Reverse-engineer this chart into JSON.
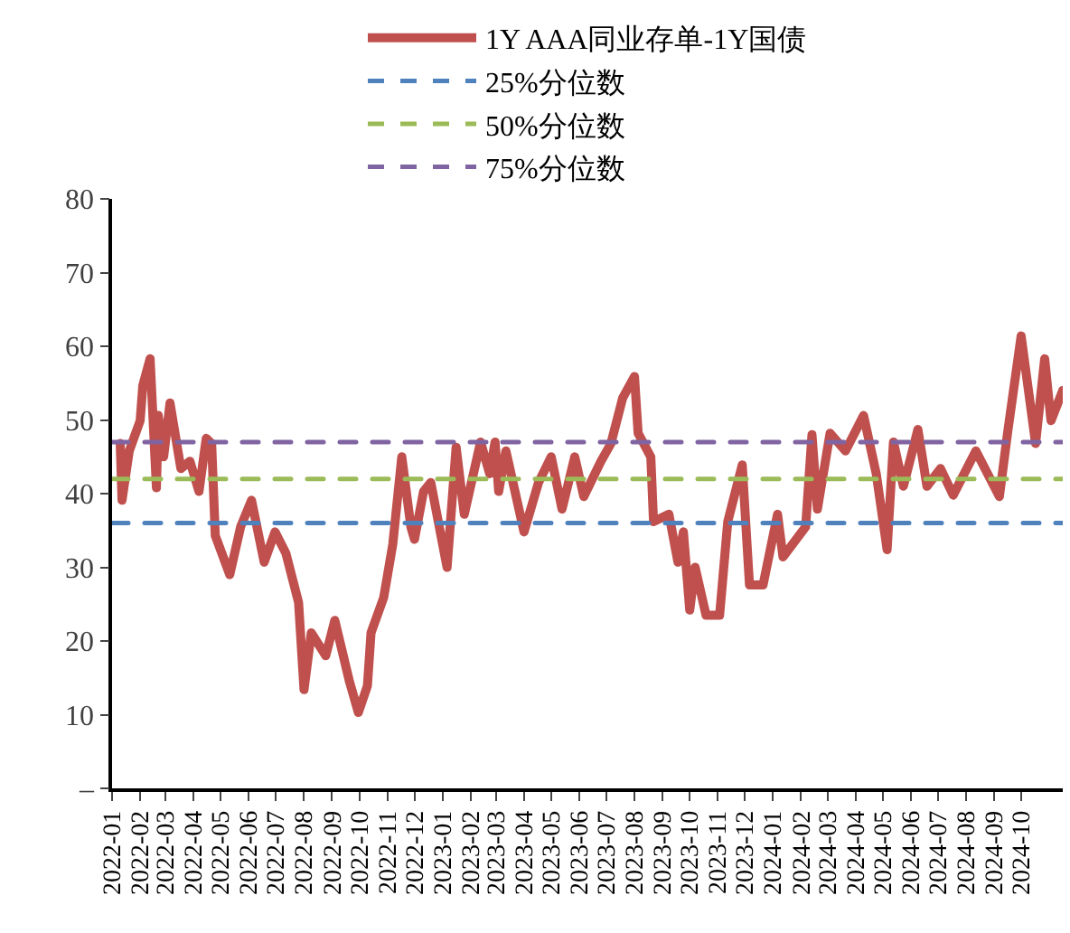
{
  "chart_data": {
    "type": "line",
    "legend": "top",
    "grid": false,
    "x": [
      "2022-01-10",
      "2022-01-12",
      "2022-01-20",
      "2022-02-01",
      "2022-02-04",
      "2022-02-12",
      "2022-02-19",
      "2022-02-21",
      "2022-02-27",
      "2022-03-06",
      "2022-03-18",
      "2022-03-28",
      "2022-04-07",
      "2022-04-15",
      "2022-04-21",
      "2022-04-25",
      "2022-05-11",
      "2022-05-23",
      "2022-06-04",
      "2022-06-18",
      "2022-06-30",
      "2022-07-12",
      "2022-07-26",
      "2022-08-01",
      "2022-08-09",
      "2022-08-25",
      "2022-09-04",
      "2022-09-20",
      "2022-09-30",
      "2022-10-10",
      "2022-10-14",
      "2022-10-28",
      "2022-11-07",
      "2022-11-17",
      "2022-11-27",
      "2022-12-01",
      "2022-12-11",
      "2022-12-19",
      "2023-01-06",
      "2023-01-16",
      "2023-01-25",
      "2023-02-12",
      "2023-02-22",
      "2023-02-28",
      "2023-03-04",
      "2023-03-12",
      "2023-04-01",
      "2023-04-17",
      "2023-05-01",
      "2023-05-13",
      "2023-05-27",
      "2023-06-06",
      "2023-06-25",
      "2023-07-06",
      "2023-07-19",
      "2023-08-01",
      "2023-08-05",
      "2023-08-19",
      "2023-08-22",
      "2023-09-08",
      "2023-09-18",
      "2023-09-24",
      "2023-10-01",
      "2023-10-07",
      "2023-10-19",
      "2023-11-03",
      "2023-11-12",
      "2023-11-28",
      "2023-12-06",
      "2023-12-21",
      "2024-01-06",
      "2024-01-12",
      "2024-02-06",
      "2024-02-13",
      "2024-02-19",
      "2024-03-04",
      "2024-03-21",
      "2024-04-10",
      "2024-04-24",
      "2024-05-06",
      "2024-05-13",
      "2024-05-24",
      "2024-06-09",
      "2024-06-19",
      "2024-07-04",
      "2024-07-18",
      "2024-08-12",
      "2024-09-07",
      "2024-09-16",
      "2024-10-01",
      "2024-10-17",
      "2024-10-27",
      "2024-11-03",
      "2024-11-16"
    ],
    "series": [
      {
        "name": "1Y AAA同业存单-1Y国债",
        "color": "#c0504d",
        "values": [
          46.8,
          39.1,
          45.8,
          49.9,
          54.7,
          58.3,
          40.8,
          50.6,
          45.0,
          52.3,
          43.4,
          44.4,
          40.3,
          47.5,
          46.8,
          34.3,
          29.0,
          35.5,
          39.1,
          30.7,
          34.8,
          31.9,
          25.2,
          13.4,
          21.1,
          18.0,
          22.8,
          14.6,
          10.3,
          13.9,
          21.1,
          25.9,
          33.1,
          45.0,
          35.5,
          33.8,
          40.3,
          41.5,
          30.0,
          46.3,
          37.2,
          47.0,
          42.7,
          47.0,
          40.3,
          45.8,
          34.8,
          41.5,
          45.0,
          37.9,
          45.0,
          39.6,
          44.4,
          46.8,
          53.0,
          55.9,
          48.2,
          45.0,
          36.2,
          37.2,
          30.7,
          34.8,
          24.2,
          30.0,
          23.5,
          23.5,
          36.2,
          43.9,
          27.6,
          27.6,
          37.2,
          31.4,
          35.5,
          48.0,
          37.9,
          48.2,
          45.8,
          50.6,
          42.7,
          32.4,
          47.0,
          41.0,
          48.7,
          41.0,
          43.4,
          39.8,
          45.8,
          39.6,
          48.2,
          61.4,
          46.8,
          58.3,
          49.9,
          54.0
        ]
      }
    ],
    "ref_lines": [
      {
        "axis": "y",
        "value": 36,
        "label": "25%分位数",
        "color": "#4f81bd",
        "line_style": "dashed"
      },
      {
        "axis": "y",
        "value": 42,
        "label": "50%分位数",
        "color": "#9bbb59",
        "line_style": "dashed"
      },
      {
        "axis": "y",
        "value": 47,
        "label": "75%分位数",
        "color": "#8064a2",
        "line_style": "dashed"
      }
    ],
    "xlim": [
      "2022-01-01",
      "2024-11-16"
    ],
    "xticks": [
      {
        "value": "2022-01-01",
        "label": "2022-01"
      },
      {
        "value": "2022-02-01",
        "label": "2022-02"
      },
      {
        "value": "2022-03-01",
        "label": "2022-03"
      },
      {
        "value": "2022-04-01",
        "label": "2022-04"
      },
      {
        "value": "2022-05-01",
        "label": "2022-05"
      },
      {
        "value": "2022-06-01",
        "label": "2022-06"
      },
      {
        "value": "2022-07-01",
        "label": "2022-07"
      },
      {
        "value": "2022-08-01",
        "label": "2022-08"
      },
      {
        "value": "2022-09-01",
        "label": "2022-09"
      },
      {
        "value": "2022-10-01",
        "label": "2022-10"
      },
      {
        "value": "2022-11-01",
        "label": "2022-11"
      },
      {
        "value": "2022-12-01",
        "label": "2022-12"
      },
      {
        "value": "2023-01-01",
        "label": "2023-01"
      },
      {
        "value": "2023-02-01",
        "label": "2023-02"
      },
      {
        "value": "2023-03-01",
        "label": "2023-03"
      },
      {
        "value": "2023-04-01",
        "label": "2023-04"
      },
      {
        "value": "2023-05-01",
        "label": "2023-05"
      },
      {
        "value": "2023-06-01",
        "label": "2023-06"
      },
      {
        "value": "2023-07-01",
        "label": "2023-07"
      },
      {
        "value": "2023-08-01",
        "label": "2023-08"
      },
      {
        "value": "2023-09-01",
        "label": "2023-09"
      },
      {
        "value": "2023-10-01",
        "label": "2023-10"
      },
      {
        "value": "2023-11-01",
        "label": "2023-11"
      },
      {
        "value": "2023-12-01",
        "label": "2023-12"
      },
      {
        "value": "2024-01-01",
        "label": "2024-01"
      },
      {
        "value": "2024-02-01",
        "label": "2024-02"
      },
      {
        "value": "2024-03-01",
        "label": "2024-03"
      },
      {
        "value": "2024-04-01",
        "label": "2024-04"
      },
      {
        "value": "2024-05-01",
        "label": "2024-05"
      },
      {
        "value": "2024-06-01",
        "label": "2024-06"
      },
      {
        "value": "2024-07-01",
        "label": "2024-07"
      },
      {
        "value": "2024-08-01",
        "label": "2024-08"
      },
      {
        "value": "2024-09-01",
        "label": "2024-09"
      },
      {
        "value": "2024-10-01",
        "label": "2024-10"
      }
    ],
    "ylim": [
      0,
      80
    ],
    "yticks": [
      {
        "value": 0,
        "label": "–"
      },
      10,
      20,
      30,
      40,
      50,
      60,
      70,
      80
    ]
  }
}
